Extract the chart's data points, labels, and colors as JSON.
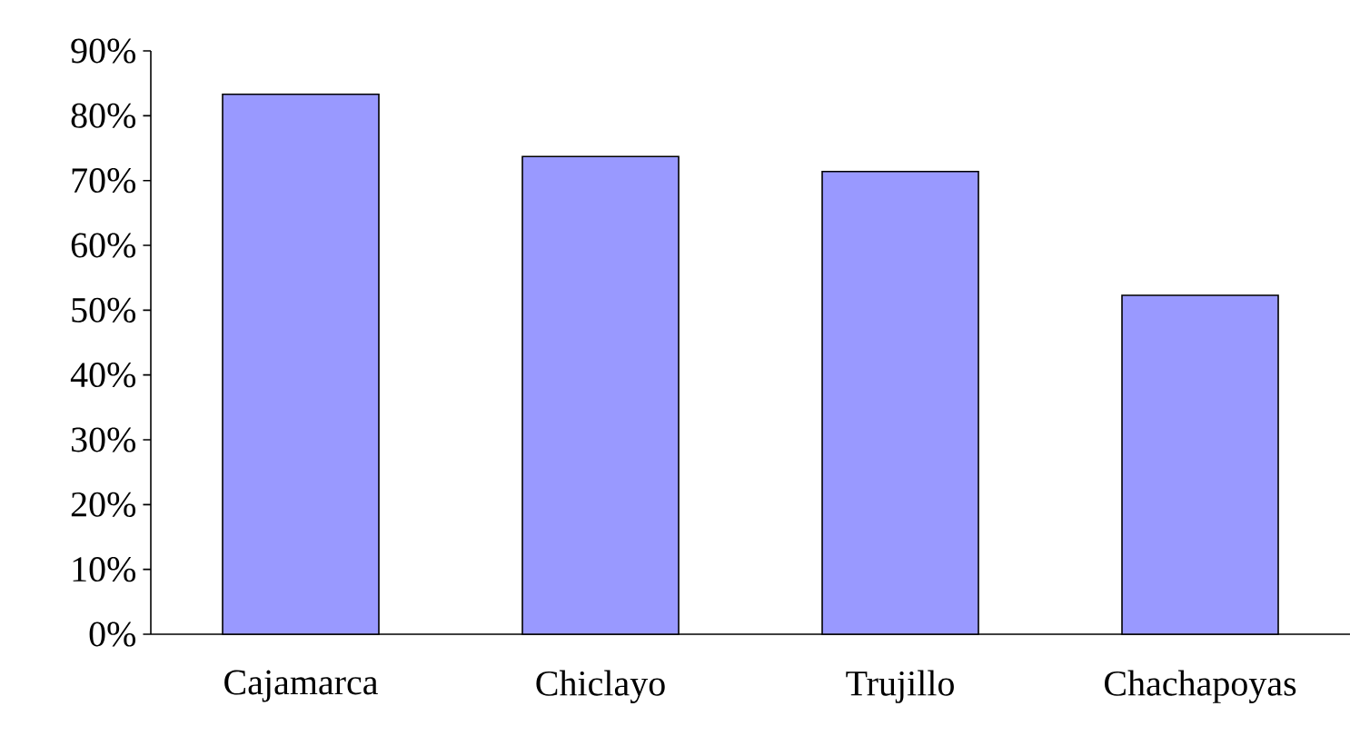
{
  "chart_data": {
    "type": "bar",
    "categories": [
      "Cajamarca",
      "Chiclayo",
      "Trujillo",
      "Chachapoyas"
    ],
    "values": [
      83.3,
      73.7,
      71.4,
      52.3
    ],
    "color": "#9999ff",
    "ylim": [
      0,
      90
    ],
    "yticks": [
      {
        "value": 0,
        "label": "0%"
      },
      {
        "value": 10,
        "label": "10%"
      },
      {
        "value": 20,
        "label": "20%"
      },
      {
        "value": 30,
        "label": "30%"
      },
      {
        "value": 40,
        "label": "40%"
      },
      {
        "value": 50,
        "label": "50%"
      },
      {
        "value": 60,
        "label": "60%"
      },
      {
        "value": 70,
        "label": "70%"
      },
      {
        "value": 80,
        "label": "80%"
      },
      {
        "value": 90,
        "label": "90%"
      }
    ],
    "grid": false
  }
}
